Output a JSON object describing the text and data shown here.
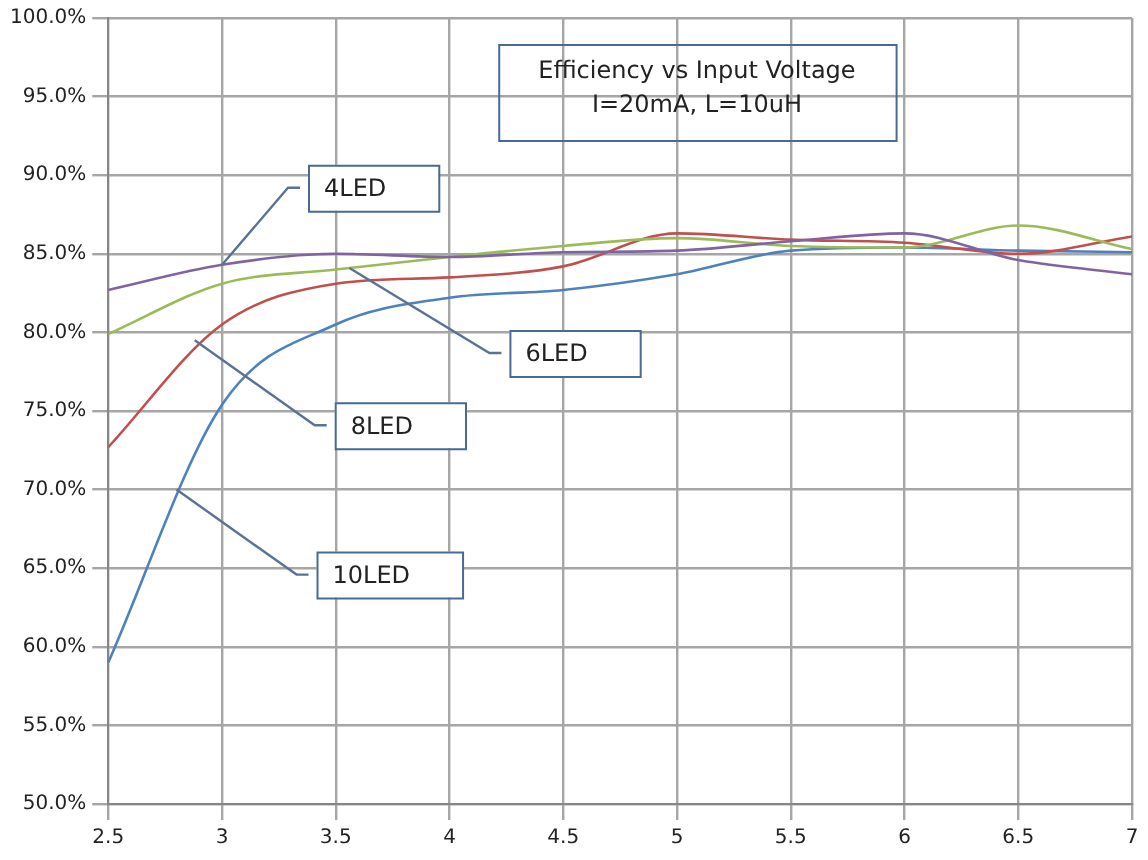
{
  "chart_data": {
    "type": "line",
    "title": "Efficiency vs Input Voltage",
    "subtitle": "I=20mA, L=10uH",
    "x": [
      2.5,
      3,
      3.5,
      4,
      4.5,
      5,
      5.5,
      6,
      6.5,
      7
    ],
    "series": [
      {
        "color": "#8064a2",
        "values": [
          82.7,
          84.3,
          85.0,
          84.8,
          85.1,
          85.2,
          85.8,
          86.3,
          84.6,
          83.7
        ]
      },
      {
        "color": "#9bbb59",
        "values": [
          79.9,
          83.1,
          84.0,
          84.8,
          85.5,
          86.0,
          85.5,
          85.4,
          86.8,
          85.3
        ]
      },
      {
        "color": "#c0504d",
        "values": [
          72.7,
          80.5,
          83.1,
          83.5,
          84.2,
          86.3,
          85.9,
          85.7,
          85.0,
          86.1
        ]
      },
      {
        "color": "#4f81bd",
        "values": [
          59.0,
          75.4,
          80.5,
          82.2,
          82.7,
          83.7,
          85.2,
          85.4,
          85.2,
          85.1
        ]
      }
    ],
    "annotations": [
      {
        "text": "4LED",
        "x": 3.0,
        "y": 84.3
      },
      {
        "text": "6LED",
        "x": 3.56,
        "y": 84.1
      },
      {
        "text": "8LED",
        "x": 2.88,
        "y": 79.5
      },
      {
        "text": "10LED",
        "x": 2.8,
        "y": 70.0
      }
    ],
    "xlim": [
      2.5,
      7
    ],
    "xticks": [
      2.5,
      3,
      3.5,
      4,
      4.5,
      5,
      5.5,
      6,
      6.5,
      7
    ],
    "ylim": [
      50,
      100
    ],
    "yticks": [
      {
        "value": 50,
        "label": "50.0%"
      },
      {
        "value": 55,
        "label": "55.0%"
      },
      {
        "value": 60,
        "label": "60.0%"
      },
      {
        "value": 65,
        "label": "65.0%"
      },
      {
        "value": 70,
        "label": "70.0%"
      },
      {
        "value": 75,
        "label": "75.0%"
      },
      {
        "value": 80,
        "label": "80.0%"
      },
      {
        "value": 85,
        "label": "85.0%"
      },
      {
        "value": 90,
        "label": "90.0%"
      },
      {
        "value": 95,
        "label": "95.0%"
      },
      {
        "value": 100,
        "label": "100.0%"
      }
    ],
    "grid": true,
    "legend": false,
    "marker": "none",
    "line_style": "solid"
  }
}
